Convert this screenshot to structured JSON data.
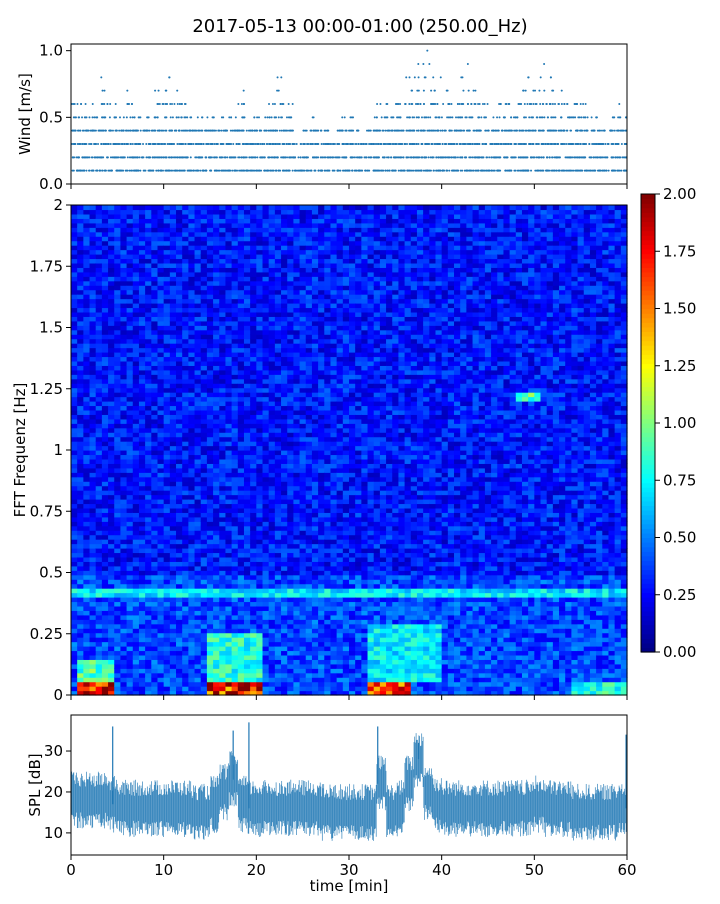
{
  "chart_data": [
    {
      "type": "scatter",
      "title": "2017-05-13 00:00-01:00 (250.00_Hz)",
      "ylabel": "Wind [m/s]",
      "xlim": [
        0,
        60
      ],
      "ylim": [
        0,
        1.05
      ],
      "yticks": [
        "0.0",
        "0.5",
        "1.0"
      ],
      "yticks_values": [
        0,
        0.5,
        1.0
      ],
      "color": "#1f77b4",
      "resolution": 0.1,
      "minute_max": [
        0.6,
        0.6,
        0.6,
        0.8,
        0.6,
        0.5,
        0.7,
        0.5,
        0.5,
        0.7,
        0.9,
        0.7,
        0.6,
        0.5,
        0.5,
        0.5,
        0.5,
        0.5,
        0.7,
        0.5,
        0.5,
        0.6,
        0.8,
        0.6,
        0.3,
        0.4,
        0.5,
        0.4,
        0.4,
        0.5,
        0.5,
        0.4,
        0.5,
        0.6,
        0.6,
        0.7,
        0.8,
        0.9,
        1.0,
        0.9,
        0.7,
        0.6,
        0.9,
        0.7,
        0.6,
        0.5,
        0.6,
        0.6,
        0.7,
        0.9,
        0.8,
        0.9,
        0.7,
        0.6,
        0.7,
        0.6,
        0.5,
        0.4,
        0.5,
        0.6
      ],
      "minute_min": 0.1
    },
    {
      "type": "heatmap",
      "ylabel": "FFT Frequenz [Hz]",
      "xlim": [
        0,
        60
      ],
      "ylim": [
        0,
        2
      ],
      "yticks": [
        "0",
        "0.25",
        "0.5",
        "0.75",
        "1",
        "1.25",
        "1.5",
        "1.75",
        "2"
      ],
      "yticks_values": [
        0,
        0.25,
        0.5,
        0.75,
        1,
        1.25,
        1.5,
        1.75,
        2
      ],
      "colormap": "jet",
      "clim": [
        0,
        2
      ],
      "colorbar_ticks": [
        "0.00",
        "0.25",
        "0.50",
        "0.75",
        "1.00",
        "1.25",
        "1.50",
        "1.75",
        "2.00"
      ],
      "colorbar_values": [
        0,
        0.25,
        0.5,
        0.75,
        1,
        1.25,
        1.5,
        1.75,
        2
      ],
      "background_level": 0.3,
      "hotspots": [
        {
          "t": [
            1,
            5
          ],
          "f": [
            0,
            0.06
          ],
          "value": 2.0
        },
        {
          "t": [
            1,
            5
          ],
          "f": [
            0.06,
            0.15
          ],
          "value": 1.0
        },
        {
          "t": [
            15,
            21
          ],
          "f": [
            0,
            0.05
          ],
          "value": 1.9
        },
        {
          "t": [
            15,
            21
          ],
          "f": [
            0.05,
            0.25
          ],
          "value": 0.9
        },
        {
          "t": [
            32,
            37
          ],
          "f": [
            0,
            0.06
          ],
          "value": 1.8
        },
        {
          "t": [
            32,
            40
          ],
          "f": [
            0.06,
            0.3
          ],
          "value": 0.8
        },
        {
          "t": [
            0,
            60
          ],
          "f": [
            0.4,
            0.44
          ],
          "value": 0.8
        },
        {
          "t": [
            48,
            51
          ],
          "f": [
            1.2,
            1.23
          ],
          "value": 1.0
        },
        {
          "t": [
            54,
            60
          ],
          "f": [
            0,
            0.05
          ],
          "value": 0.9
        }
      ]
    },
    {
      "type": "line",
      "ylabel": "SPL [dB]",
      "xlabel": "time [min]",
      "xlim": [
        0,
        60
      ],
      "ylim": [
        4.6,
        38.8
      ],
      "xticks": [
        "0",
        "10",
        "20",
        "30",
        "40",
        "50",
        "60"
      ],
      "xticks_values": [
        0,
        10,
        20,
        30,
        40,
        50,
        60
      ],
      "yticks": [
        "10",
        "20",
        "30"
      ],
      "yticks_values": [
        10,
        20,
        30
      ],
      "color": "#1f77b4",
      "minute_median": [
        18,
        18,
        18,
        18,
        17,
        16,
        16,
        16,
        16,
        16,
        16,
        16,
        16,
        15,
        15,
        17,
        20,
        23,
        17,
        16,
        16,
        16,
        16,
        16,
        16,
        16,
        16,
        15,
        15,
        15,
        15,
        15,
        15,
        22,
        15,
        16,
        22,
        28,
        20,
        17,
        16,
        16,
        16,
        16,
        16,
        16,
        16,
        16,
        16,
        16,
        17,
        16,
        16,
        16,
        15,
        15,
        15,
        15,
        15,
        16
      ],
      "spikes": [
        {
          "t": 4.5,
          "db": 36
        },
        {
          "t": 17.5,
          "db": 35
        },
        {
          "t": 19.2,
          "db": 37
        },
        {
          "t": 33.1,
          "db": 36
        },
        {
          "t": 37.5,
          "db": 32
        },
        {
          "t": 59.9,
          "db": 34
        }
      ]
    }
  ]
}
